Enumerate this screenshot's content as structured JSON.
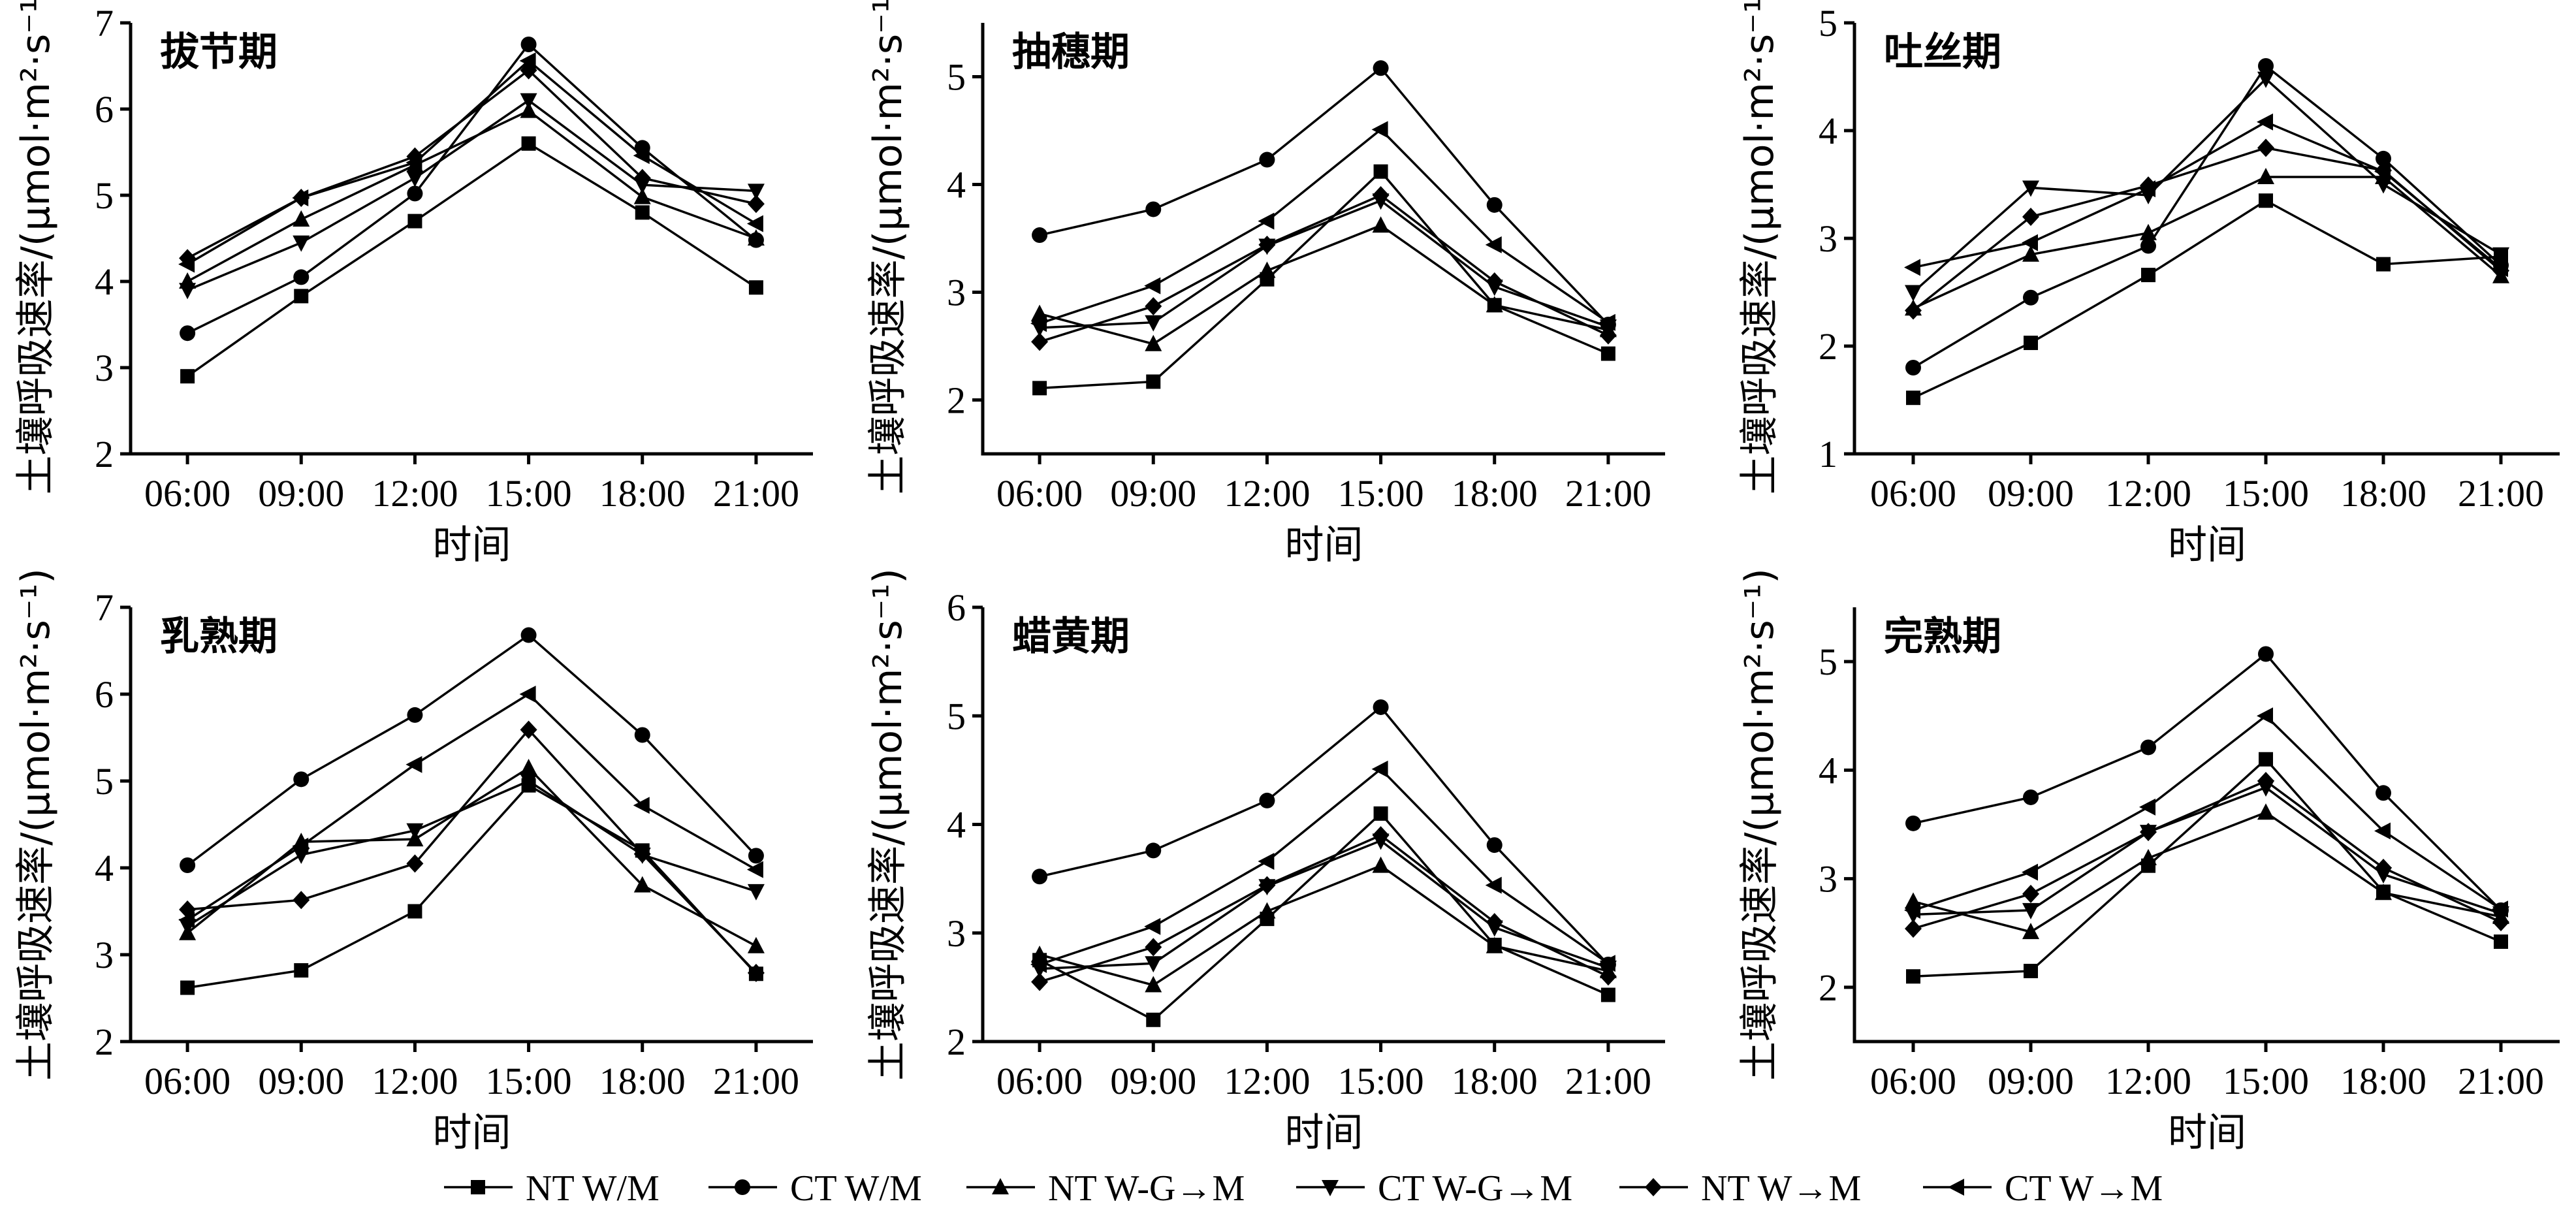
{
  "chart_data": {
    "type": "line",
    "x_axis_label": "时间",
    "y_axis_label": "土壤呼吸速率/(μmol·m²·s⁻¹)",
    "categories": [
      "06:00",
      "09:00",
      "12:00",
      "15:00",
      "18:00",
      "21:00"
    ],
    "legend": [
      {
        "name": "NT W/M",
        "marker": "square"
      },
      {
        "name": "CT W/M",
        "marker": "circle"
      },
      {
        "name": "NT W-G→M",
        "marker": "triangle-up"
      },
      {
        "name": "CT W-G→M",
        "marker": "triangle-down"
      },
      {
        "name": "NT W→M",
        "marker": "diamond"
      },
      {
        "name": "CT W→M",
        "marker": "triangle-left"
      }
    ],
    "legend_position": "bottom",
    "panels": [
      {
        "title": "拔节期",
        "ylim": [
          2,
          7
        ],
        "yticks": [
          2,
          3,
          4,
          5,
          6,
          7
        ],
        "series": [
          {
            "values": [
              2.9,
              3.83,
              4.7,
              5.6,
              4.8,
              3.93
            ]
          },
          {
            "values": [
              3.4,
              4.05,
              5.02,
              6.75,
              5.55,
              4.48
            ]
          },
          {
            "values": [
              4.0,
              4.72,
              5.35,
              5.98,
              4.98,
              4.5
            ]
          },
          {
            "values": [
              3.9,
              4.45,
              5.2,
              6.1,
              5.12,
              5.05
            ]
          },
          {
            "values": [
              4.27,
              4.97,
              5.45,
              6.45,
              5.2,
              4.9
            ]
          },
          {
            "values": [
              4.2,
              4.97,
              5.38,
              6.56,
              5.46,
              4.67
            ]
          }
        ]
      },
      {
        "title": "抽穗期",
        "ylim": [
          1.5,
          5.5
        ],
        "yticks": [
          2,
          3,
          4,
          5
        ],
        "series": [
          {
            "values": [
              2.11,
              2.17,
              3.12,
              4.12,
              2.88,
              2.43
            ]
          },
          {
            "values": [
              3.53,
              3.77,
              4.23,
              5.08,
              3.81,
              2.7
            ]
          },
          {
            "values": [
              2.8,
              2.52,
              3.2,
              3.62,
              2.88,
              2.65
            ]
          },
          {
            "values": [
              2.67,
              2.72,
              3.43,
              3.85,
              3.05,
              2.68
            ]
          },
          {
            "values": [
              2.54,
              2.87,
              3.44,
              3.9,
              3.1,
              2.6
            ]
          },
          {
            "values": [
              2.71,
              3.06,
              3.66,
              4.51,
              3.44,
              2.72
            ]
          }
        ]
      },
      {
        "title": "吐丝期",
        "ylim": [
          1,
          5
        ],
        "yticks": [
          1,
          2,
          3,
          4,
          5
        ],
        "series": [
          {
            "values": [
              1.52,
              2.03,
              2.66,
              3.35,
              2.76,
              2.83
            ]
          },
          {
            "values": [
              1.8,
              2.45,
              2.93,
              4.6,
              3.74,
              2.75
            ]
          },
          {
            "values": [
              2.35,
              2.85,
              3.05,
              3.57,
              3.57,
              2.65
            ]
          },
          {
            "values": [
              2.5,
              3.47,
              3.4,
              4.48,
              3.5,
              2.85
            ]
          },
          {
            "values": [
              2.33,
              3.2,
              3.49,
              3.84,
              3.63,
              2.7
            ]
          },
          {
            "values": [
              2.73,
              2.96,
              3.46,
              4.08,
              3.62,
              2.72
            ]
          }
        ]
      },
      {
        "title": "乳熟期",
        "ylim": [
          2,
          7
        ],
        "yticks": [
          2,
          3,
          4,
          5,
          6,
          7
        ],
        "series": [
          {
            "values": [
              2.62,
              2.82,
              3.5,
              4.95,
              4.2,
              2.78
            ]
          },
          {
            "values": [
              4.03,
              5.02,
              5.76,
              6.68,
              5.53,
              4.14
            ]
          },
          {
            "values": [
              3.25,
              4.3,
              4.33,
              5.15,
              3.8,
              3.1
            ]
          },
          {
            "values": [
              3.33,
              4.15,
              4.43,
              5.0,
              4.15,
              3.73
            ]
          },
          {
            "values": [
              3.52,
              3.63,
              4.05,
              5.59,
              4.16,
              2.79
            ]
          },
          {
            "values": [
              3.4,
              4.25,
              5.19,
              6.0,
              4.72,
              3.98
            ]
          }
        ]
      },
      {
        "title": "蜡黄期",
        "ylim": [
          2,
          6
        ],
        "yticks": [
          2,
          3,
          4,
          5,
          6
        ],
        "series": [
          {
            "values": [
              2.75,
              2.2,
              3.13,
              4.1,
              2.89,
              2.43
            ]
          },
          {
            "values": [
              3.52,
              3.76,
              4.22,
              5.08,
              3.81,
              2.71
            ]
          },
          {
            "values": [
              2.8,
              2.52,
              3.2,
              3.62,
              2.88,
              2.65
            ]
          },
          {
            "values": [
              2.67,
              2.72,
              3.43,
              3.85,
              3.05,
              2.68
            ]
          },
          {
            "values": [
              2.55,
              2.87,
              3.44,
              3.9,
              3.1,
              2.6
            ]
          },
          {
            "values": [
              2.71,
              3.06,
              3.66,
              4.51,
              3.44,
              2.72
            ]
          }
        ]
      },
      {
        "title": "完熟期",
        "ylim": [
          1.5,
          5.5
        ],
        "yticks": [
          2,
          3,
          4,
          5
        ],
        "series": [
          {
            "values": [
              2.1,
              2.15,
              3.12,
              4.1,
              2.88,
              2.42
            ]
          },
          {
            "values": [
              3.51,
              3.75,
              4.21,
              5.07,
              3.79,
              2.71
            ]
          },
          {
            "values": [
              2.79,
              2.51,
              3.19,
              3.61,
              2.87,
              2.65
            ]
          },
          {
            "values": [
              2.67,
              2.71,
              3.43,
              3.84,
              3.04,
              2.68
            ]
          },
          {
            "values": [
              2.54,
              2.86,
              3.43,
              3.9,
              3.1,
              2.6
            ]
          },
          {
            "values": [
              2.71,
              3.06,
              3.66,
              4.5,
              3.44,
              2.72
            ]
          }
        ]
      }
    ]
  }
}
